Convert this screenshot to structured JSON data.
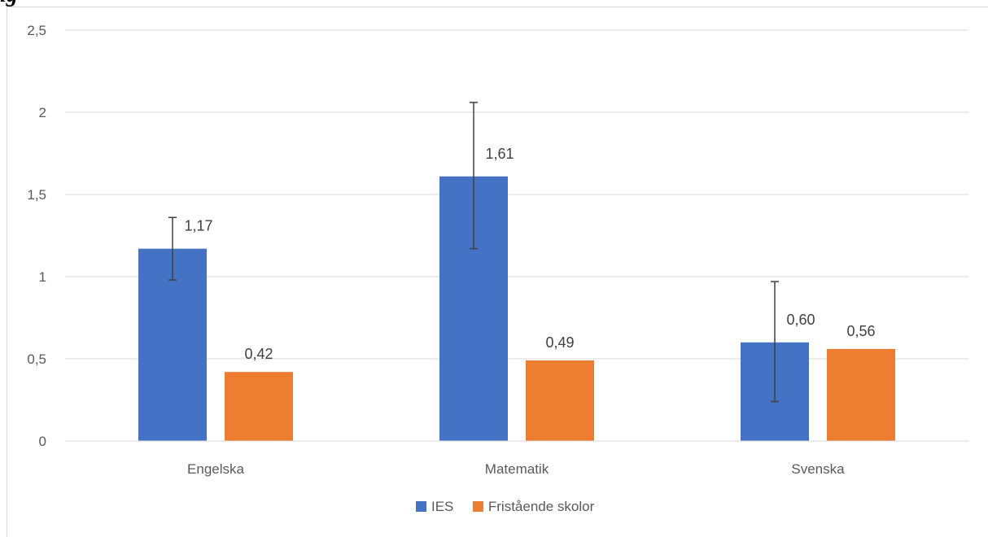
{
  "chart_data": {
    "type": "bar",
    "title_fragment": "ig",
    "categories": [
      "Engelska",
      "Matematik",
      "Svenska"
    ],
    "series": [
      {
        "name": "IES",
        "values": [
          1.17,
          1.61,
          0.6
        ],
        "labels": [
          "1,17",
          "1,61",
          "0,60"
        ],
        "error_low": [
          0.98,
          1.17,
          0.24
        ],
        "error_high": [
          1.36,
          2.06,
          0.97
        ],
        "color": "#4472C4"
      },
      {
        "name": "Fristående skolor",
        "values": [
          0.42,
          0.49,
          0.56
        ],
        "labels": [
          "0,42",
          "0,49",
          "0,56"
        ],
        "color": "#ED7D31"
      }
    ],
    "ylim": [
      0,
      2.5
    ],
    "yticks": [
      0,
      0.5,
      1,
      1.5,
      2,
      2.5
    ],
    "ytick_labels": [
      "0",
      "0,5",
      "1",
      "1,5",
      "2",
      "2,5"
    ],
    "grid": true,
    "legend": "bottom"
  }
}
